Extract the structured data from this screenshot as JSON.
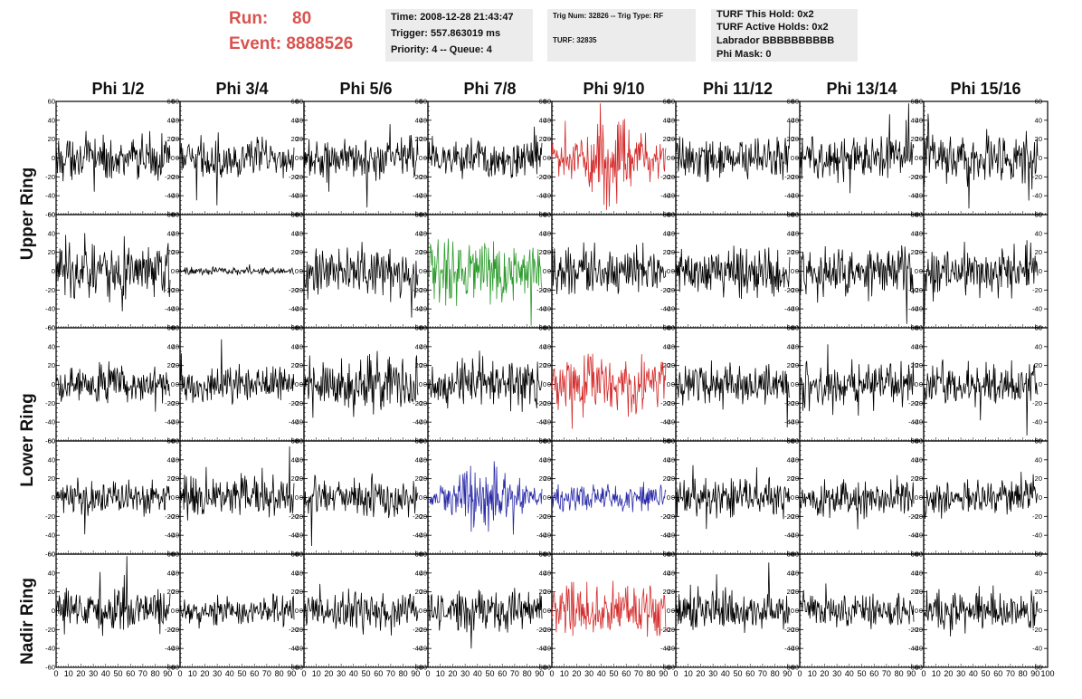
{
  "run_info": {
    "run_label": "Run:",
    "run_value": "80",
    "event_label": "Event:",
    "event_value": "8888526"
  },
  "time_box": {
    "time": "Time: 2008-12-28 21:43:47",
    "trigger": "Trigger: 557.863019 ms",
    "priority": "Priority: 4 -- Queue: 4"
  },
  "trig_box": {
    "trig": "Trig Num: 32826 -- Trig Type: RF",
    "turf": "TURF: 32835"
  },
  "turf_box": {
    "this_hold": "TURF This Hold: 0x2",
    "active_holds": "TURF Active Holds: 0x2",
    "labrador": "Labrador BBBBBBBBBB",
    "phi_mask": "Phi Mask: 0"
  },
  "columns": [
    "Phi 1/2",
    "Phi 3/4",
    "Phi 5/6",
    "Phi 7/8",
    "Phi 9/10",
    "Phi 11/12",
    "Phi 13/14",
    "Phi 15/16"
  ],
  "row_labels": {
    "upper": "Upper Ring",
    "lower": "Lower Ring",
    "nadir": "Nadir Ring"
  },
  "colors": {
    "default": "#000000",
    "red": "#d42a2a",
    "green": "#2a9a2a",
    "blue": "#2a2aa8",
    "run_text": "#d9534f",
    "info_bg": "#ececec"
  },
  "chart_data": {
    "type": "line",
    "grid_rows": 5,
    "grid_cols": 8,
    "xlim": [
      0,
      100
    ],
    "ylim": [
      -60,
      60
    ],
    "y_ticks": [
      60,
      40,
      20,
      0,
      -20,
      -40,
      -60
    ],
    "x_ticks": [
      0,
      10,
      20,
      30,
      40,
      50,
      60,
      70,
      80,
      90,
      100
    ],
    "trace_x_range": [
      0,
      92
    ],
    "trace_points": 180,
    "panels": [
      {
        "row": 0,
        "col": 0,
        "color": "default",
        "amp": 11
      },
      {
        "row": 0,
        "col": 1,
        "color": "default",
        "amp": 10
      },
      {
        "row": 0,
        "col": 2,
        "color": "default",
        "amp": 11
      },
      {
        "row": 0,
        "col": 3,
        "color": "default",
        "amp": 11
      },
      {
        "row": 0,
        "col": 4,
        "color": "red",
        "amp": 20,
        "envelope": true
      },
      {
        "row": 0,
        "col": 5,
        "color": "default",
        "amp": 10
      },
      {
        "row": 0,
        "col": 6,
        "color": "default",
        "amp": 11
      },
      {
        "row": 0,
        "col": 7,
        "color": "default",
        "amp": 12
      },
      {
        "row": 1,
        "col": 0,
        "color": "default",
        "amp": 14
      },
      {
        "row": 1,
        "col": 1,
        "color": "default",
        "amp": 2
      },
      {
        "row": 1,
        "col": 2,
        "color": "default",
        "amp": 12
      },
      {
        "row": 1,
        "col": 3,
        "color": "green",
        "amp": 16
      },
      {
        "row": 1,
        "col": 4,
        "color": "default",
        "amp": 11
      },
      {
        "row": 1,
        "col": 5,
        "color": "default",
        "amp": 12
      },
      {
        "row": 1,
        "col": 6,
        "color": "default",
        "amp": 13
      },
      {
        "row": 1,
        "col": 7,
        "color": "default",
        "amp": 12
      },
      {
        "row": 2,
        "col": 0,
        "color": "default",
        "amp": 10
      },
      {
        "row": 2,
        "col": 1,
        "color": "default",
        "amp": 9
      },
      {
        "row": 2,
        "col": 2,
        "color": "default",
        "amp": 13
      },
      {
        "row": 2,
        "col": 3,
        "color": "default",
        "amp": 12
      },
      {
        "row": 2,
        "col": 4,
        "color": "red",
        "amp": 14
      },
      {
        "row": 2,
        "col": 5,
        "color": "default",
        "amp": 10
      },
      {
        "row": 2,
        "col": 6,
        "color": "default",
        "amp": 11
      },
      {
        "row": 2,
        "col": 7,
        "color": "default",
        "amp": 11
      },
      {
        "row": 3,
        "col": 0,
        "color": "default",
        "amp": 9
      },
      {
        "row": 3,
        "col": 1,
        "color": "default",
        "amp": 11
      },
      {
        "row": 3,
        "col": 2,
        "color": "default",
        "amp": 9
      },
      {
        "row": 3,
        "col": 3,
        "color": "blue",
        "amp": 14,
        "envelope": true
      },
      {
        "row": 3,
        "col": 4,
        "color": "blue",
        "amp": 7
      },
      {
        "row": 3,
        "col": 5,
        "color": "default",
        "amp": 9
      },
      {
        "row": 3,
        "col": 6,
        "color": "default",
        "amp": 9
      },
      {
        "row": 3,
        "col": 7,
        "color": "default",
        "amp": 10
      },
      {
        "row": 4,
        "col": 0,
        "color": "default",
        "amp": 11
      },
      {
        "row": 4,
        "col": 1,
        "color": "default",
        "amp": 8
      },
      {
        "row": 4,
        "col": 2,
        "color": "default",
        "amp": 10
      },
      {
        "row": 4,
        "col": 3,
        "color": "default",
        "amp": 10
      },
      {
        "row": 4,
        "col": 4,
        "color": "red",
        "amp": 13
      },
      {
        "row": 4,
        "col": 5,
        "color": "default",
        "amp": 10
      },
      {
        "row": 4,
        "col": 6,
        "color": "default",
        "amp": 9
      },
      {
        "row": 4,
        "col": 7,
        "color": "default",
        "amp": 10
      }
    ]
  }
}
